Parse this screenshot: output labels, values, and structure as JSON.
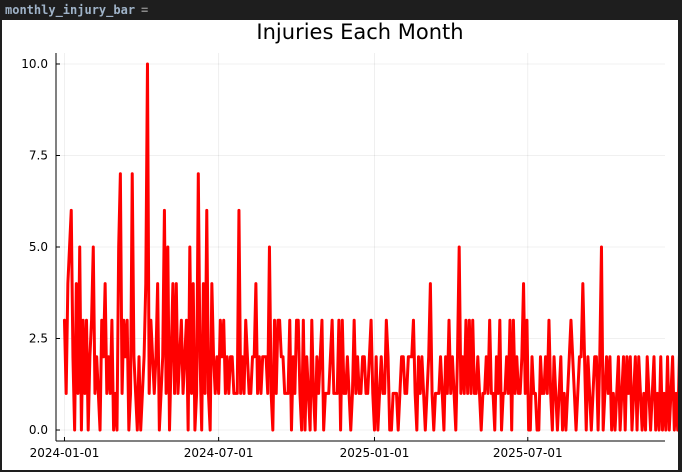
{
  "cell": {
    "variable_name": "monthly_injury_bar",
    "operator": "="
  },
  "chart_data": {
    "type": "line",
    "title": "Injuries Each Month",
    "xlabel": "",
    "ylabel": "",
    "x_start": "2024-01-01",
    "x_step_days": 2,
    "x_ticks": [
      "2024-01-01",
      "2024-07-01",
      "2025-01-01",
      "2025-07-01"
    ],
    "xlim": [
      "2023-12-22",
      "2025-12-10"
    ],
    "y_ticks": [
      0.0,
      2.5,
      5.0,
      7.5,
      10.0
    ],
    "y_tick_labels": [
      "0.0",
      "2.5",
      "5.0",
      "7.5",
      "10.0"
    ],
    "ylim": [
      -0.3,
      10.3
    ],
    "grid": true,
    "legend": "none",
    "series": [
      {
        "color": "#ff0000",
        "values": [
          3,
          1,
          4,
          5,
          6,
          2,
          0,
          4,
          1,
          5,
          0,
          3,
          1,
          3,
          0,
          2,
          3,
          5,
          1,
          2,
          1,
          0,
          3,
          2,
          4,
          1,
          2,
          1,
          3,
          0,
          1,
          0,
          5,
          7,
          1,
          3,
          2,
          3,
          0,
          1,
          7,
          2,
          1,
          0,
          2,
          0,
          1,
          2,
          4,
          10,
          1,
          3,
          2,
          1,
          2,
          4,
          0,
          1,
          2,
          6,
          1,
          5,
          0,
          2,
          4,
          1,
          4,
          1,
          2,
          3,
          1,
          2,
          3,
          0,
          5,
          1,
          4,
          0,
          1,
          7,
          2,
          0,
          4,
          1,
          6,
          1,
          0,
          4,
          2,
          1,
          2,
          1,
          3,
          2,
          3,
          1,
          2,
          1,
          2,
          2,
          1,
          1,
          1,
          6,
          1,
          2,
          1,
          3,
          2,
          1,
          1,
          2,
          2,
          4,
          1,
          2,
          1,
          2,
          2,
          2,
          1,
          5,
          1,
          0,
          3,
          1,
          3,
          3,
          2,
          2,
          1,
          1,
          1,
          3,
          0,
          2,
          1,
          3,
          3,
          1,
          0,
          3,
          0,
          2,
          1,
          0,
          3,
          1,
          0,
          2,
          1,
          2,
          3,
          0,
          1,
          1,
          1,
          2,
          3,
          1,
          1,
          1,
          3,
          0,
          3,
          1,
          1,
          2,
          1,
          0,
          1,
          3,
          1,
          2,
          1,
          1,
          2,
          2,
          1,
          1,
          2,
          3,
          1,
          0,
          2,
          0,
          1,
          2,
          1,
          1,
          3,
          2,
          0,
          0,
          1,
          1,
          1,
          0,
          1,
          2,
          2,
          1,
          1,
          2,
          2,
          2,
          3,
          1,
          0,
          2,
          1,
          2,
          1,
          0,
          1,
          2,
          4,
          1,
          0,
          1,
          1,
          1,
          2,
          1,
          0,
          2,
          1,
          3,
          1,
          2,
          1,
          0,
          2,
          5,
          1,
          2,
          1,
          3,
          1,
          3,
          1,
          3,
          1,
          1,
          2,
          1,
          0,
          1,
          1,
          2,
          1,
          3,
          1,
          1,
          0,
          2,
          1,
          3,
          0,
          1,
          1,
          2,
          1,
          3,
          0,
          3,
          1,
          2,
          1,
          1,
          2,
          4,
          1,
          3,
          0,
          0,
          2,
          1,
          1,
          0,
          0,
          2,
          1,
          1,
          2,
          1,
          3,
          1,
          0,
          2,
          1,
          0,
          1,
          2,
          0,
          1,
          0,
          1,
          2,
          3,
          2,
          1,
          0,
          1,
          2,
          2,
          4,
          2,
          0,
          2,
          1,
          0,
          1,
          2,
          2,
          0,
          2,
          5,
          0,
          1,
          2,
          1,
          2,
          0,
          1,
          0,
          1,
          2,
          0,
          1,
          2,
          0,
          2,
          1,
          2,
          0,
          1,
          2,
          0,
          2,
          1,
          0,
          1,
          0,
          2,
          1,
          0,
          1,
          2,
          0,
          1,
          0,
          2,
          0,
          1,
          0,
          2,
          0,
          1,
          2,
          0,
          1,
          0,
          2,
          3,
          1
        ]
      }
    ]
  }
}
